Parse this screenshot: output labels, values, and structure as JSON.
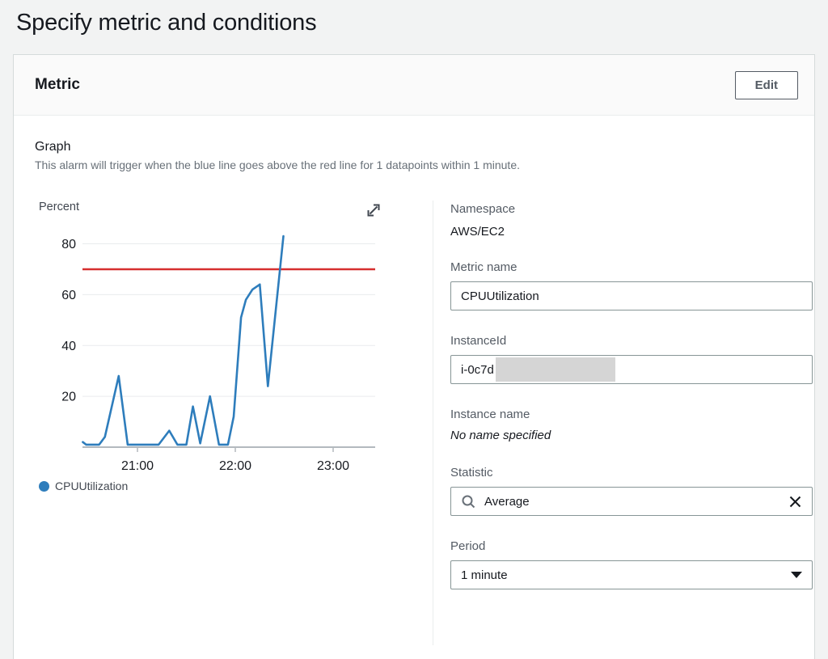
{
  "page": {
    "title": "Specify metric and conditions"
  },
  "card": {
    "title": "Metric",
    "edit_label": "Edit"
  },
  "graph": {
    "heading": "Graph",
    "description": "This alarm will trigger when the blue line goes above the red line for 1 datapoints within 1 minute."
  },
  "chart_data": {
    "type": "line",
    "unit_label": "Percent",
    "legend": [
      {
        "name": "CPUUtilization",
        "color": "#2e7dbc"
      }
    ],
    "legend_position": "bottom-left",
    "grid": true,
    "ylim": [
      0,
      87
    ],
    "y_ticks": [
      20,
      40,
      60,
      80
    ],
    "x_note": "t = minutes after 20:00",
    "x_ticks": [
      {
        "t": 60,
        "label": "21:00"
      },
      {
        "t": 120,
        "label": "22:00"
      },
      {
        "t": 180,
        "label": "23:00"
      }
    ],
    "xlim_t": [
      26,
      206
    ],
    "threshold": {
      "value": 70,
      "color": "#d62f2f"
    },
    "series": [
      {
        "name": "CPUUtilization",
        "color": "#2e7dbc",
        "points": [
          [
            26.5,
            2
          ],
          [
            28.5,
            1
          ],
          [
            36.5,
            1
          ],
          [
            40,
            4
          ],
          [
            48.5,
            28
          ],
          [
            54,
            1
          ],
          [
            73,
            1
          ],
          [
            79.5,
            6.5
          ],
          [
            84.5,
            1
          ],
          [
            90,
            1
          ],
          [
            94,
            16
          ],
          [
            98.5,
            1.5
          ],
          [
            104.5,
            20
          ],
          [
            110,
            1
          ],
          [
            115.5,
            1
          ],
          [
            119,
            12
          ],
          [
            123.5,
            51
          ],
          [
            126.5,
            58
          ],
          [
            130.5,
            62
          ],
          [
            135,
            64
          ],
          [
            140,
            24
          ],
          [
            149.5,
            83
          ]
        ]
      }
    ]
  },
  "fields": {
    "namespace": {
      "label": "Namespace",
      "value": "AWS/EC2"
    },
    "metric_name": {
      "label": "Metric name",
      "value": "CPUUtilization"
    },
    "instance_id": {
      "label": "InstanceId",
      "value": "i-0c7d",
      "redacted": true
    },
    "instance_name": {
      "label": "Instance name",
      "value": "No name specified"
    },
    "statistic": {
      "label": "Statistic",
      "value": "Average"
    },
    "period": {
      "label": "Period",
      "value": "1 minute"
    }
  },
  "colors": {
    "series_blue": "#2e7dbc",
    "threshold_red": "#d62f2f",
    "gridline": "#e9ebed",
    "axis": "#b3b9be",
    "redaction_gray": "#d5d5d5"
  }
}
